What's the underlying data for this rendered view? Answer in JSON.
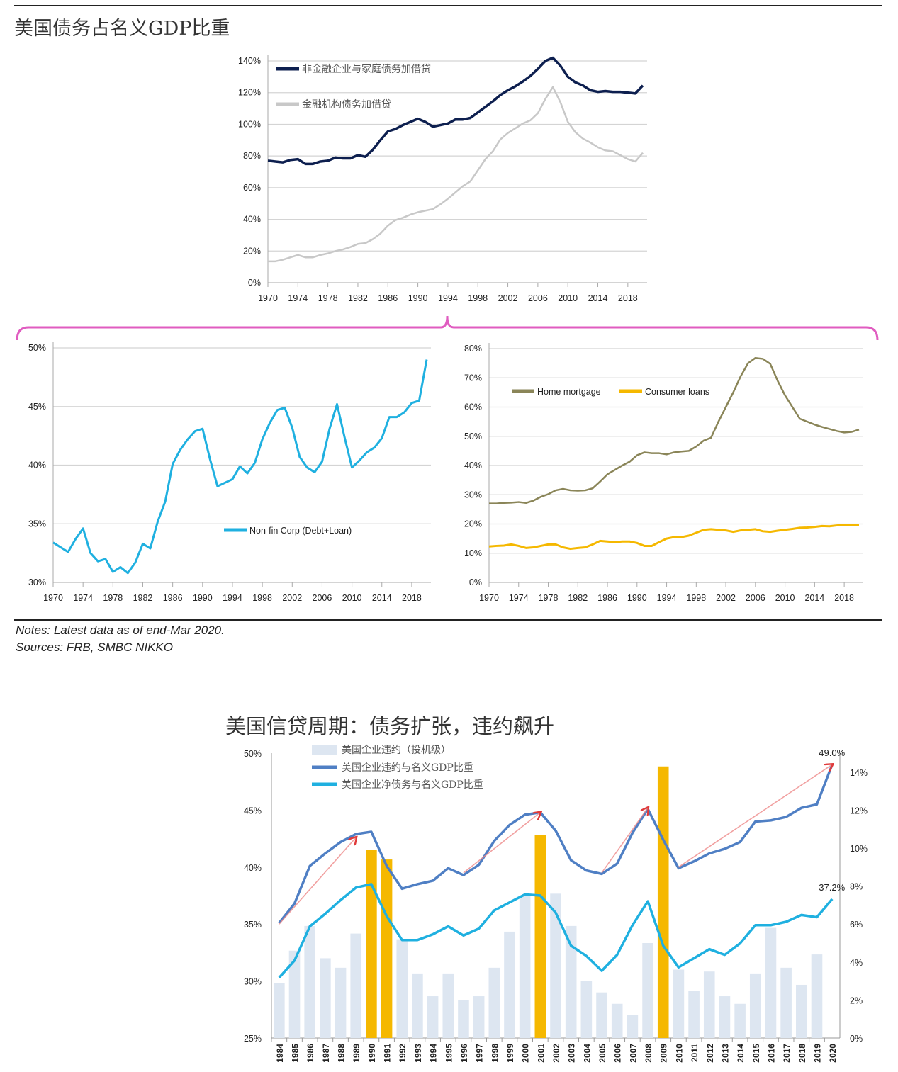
{
  "page": {
    "title_top": "美国债务占名义GDP比重",
    "title_bottom": "美国信贷周期：债务扩张，违约飙升",
    "notes": "Notes: Latest data as of end-Mar 2020.",
    "sources": "Sources: FRB, SMBC NIKKO"
  },
  "colors": {
    "bracket": "#e05cc0",
    "navy": "#0d1f4f",
    "lightgray": "#c8c8c8",
    "cyan": "#1fb0e0",
    "olive": "#8a8558",
    "gold": "#f5b800",
    "steel": "#4f7fc4",
    "paleblue": "#dde6f1",
    "arrow": "#e03a3a"
  },
  "chart_data": [
    {
      "type": "line",
      "title": "美国债务占名义GDP比重",
      "x_start": 1970,
      "x_end": 2020,
      "xticks": [
        "1970",
        "1974",
        "1978",
        "1982",
        "1986",
        "1990",
        "1994",
        "1998",
        "2002",
        "2006",
        "2010",
        "2014",
        "2018"
      ],
      "ylim": [
        0,
        140
      ],
      "yticks": [
        "0%",
        "20%",
        "40%",
        "60%",
        "80%",
        "100%",
        "120%",
        "140%"
      ],
      "grid": true,
      "legend": "top-left",
      "series": [
        {
          "name": "非金融企业与家庭债务加借贷",
          "color": "#0d1f4f",
          "values": [
            77,
            76.5,
            76,
            77.5,
            78,
            75,
            75,
            76.5,
            77,
            79,
            78.5,
            78.5,
            80.5,
            79.5,
            84,
            90,
            95.5,
            97,
            99.5,
            101.5,
            103.5,
            101.5,
            98.5,
            99.5,
            100.5,
            103,
            103,
            104,
            107.5,
            111,
            114.5,
            118.5,
            121.5,
            124,
            127,
            130.5,
            135,
            140,
            142,
            137,
            130,
            126.5,
            124.5,
            121.5,
            120.5,
            121,
            120.5,
            120.5,
            120,
            119.5,
            124.5
          ]
        },
        {
          "name": "金融机构债务加借贷",
          "color": "#c8c8c8",
          "values": [
            13.5,
            13.5,
            14.5,
            16,
            17.5,
            16,
            16,
            17.5,
            18.5,
            20,
            21,
            22.5,
            24.5,
            25,
            27.5,
            31,
            36,
            39.5,
            41,
            43,
            44.5,
            45.5,
            46.5,
            49.5,
            53,
            57,
            61,
            64,
            71,
            78,
            83,
            90.5,
            94.5,
            97.5,
            100.5,
            102.5,
            107,
            116,
            123.5,
            114,
            101.5,
            95,
            91,
            88.5,
            85.5,
            83.5,
            83,
            80.5,
            78,
            76.5,
            82
          ]
        }
      ]
    },
    {
      "type": "line",
      "x_start": 1970,
      "x_end": 2020,
      "xticks": [
        "1970",
        "1974",
        "1978",
        "1982",
        "1986",
        "1990",
        "1994",
        "1998",
        "2002",
        "2006",
        "2010",
        "2014",
        "2018"
      ],
      "ylim": [
        30,
        50
      ],
      "yticks": [
        "30%",
        "35%",
        "40%",
        "45%",
        "50%"
      ],
      "grid": true,
      "legend": "center-right",
      "series": [
        {
          "name": "Non-fin Corp (Debt+Loan)",
          "color": "#1fb0e0",
          "values": [
            33.4,
            33,
            32.6,
            33.7,
            34.6,
            32.5,
            31.8,
            32,
            30.9,
            31.3,
            30.8,
            31.7,
            33.3,
            32.9,
            35.2,
            36.9,
            40.1,
            41.3,
            42.2,
            42.9,
            43.1,
            40.5,
            38.2,
            38.5,
            38.8,
            39.9,
            39.3,
            40.2,
            42.2,
            43.6,
            44.7,
            44.9,
            43.2,
            40.7,
            39.8,
            39.4,
            40.3,
            43.1,
            45.2,
            42.4,
            39.8,
            40.4,
            41.1,
            41.5,
            42.3,
            44.1,
            44.1,
            44.5,
            45.3,
            45.5,
            49.0
          ]
        }
      ]
    },
    {
      "type": "line",
      "x_start": 1970,
      "x_end": 2020,
      "xticks": [
        "1970",
        "1974",
        "1978",
        "1982",
        "1986",
        "1990",
        "1994",
        "1998",
        "2002",
        "2006",
        "2010",
        "2014",
        "2018"
      ],
      "ylim": [
        0,
        80
      ],
      "yticks": [
        "0%",
        "10%",
        "20%",
        "30%",
        "40%",
        "50%",
        "60%",
        "70%",
        "80%"
      ],
      "grid": true,
      "legend": "top-left",
      "series": [
        {
          "name": "Home mortgage",
          "color": "#8a8558",
          "values": [
            27,
            27,
            27.2,
            27.3,
            27.5,
            27.2,
            28,
            29.3,
            30.2,
            31.5,
            32,
            31.5,
            31.4,
            31.5,
            32.2,
            34.5,
            37,
            38.5,
            40,
            41.3,
            43.5,
            44.5,
            44.2,
            44.2,
            43.8,
            44.5,
            44.8,
            45,
            46.5,
            48.5,
            49.5,
            55,
            60,
            65,
            70.5,
            75,
            76.8,
            76.5,
            74.8,
            69,
            64,
            60,
            56,
            55,
            54,
            53.2,
            52.5,
            51.8,
            51.3,
            51.5,
            52.3
          ]
        },
        {
          "name": "Consumer loans",
          "color": "#f5b800",
          "values": [
            12.3,
            12.5,
            12.6,
            13,
            12.5,
            11.8,
            12,
            12.5,
            13,
            13,
            12,
            11.5,
            11.8,
            12,
            13,
            14.2,
            14,
            13.8,
            14,
            14,
            13.5,
            12.5,
            12.5,
            13.8,
            15,
            15.5,
            15.5,
            16,
            17,
            18,
            18.2,
            18,
            17.8,
            17.3,
            17.8,
            18,
            18.2,
            17.5,
            17.3,
            17.7,
            18,
            18.3,
            18.7,
            18.8,
            19,
            19.3,
            19.2,
            19.5,
            19.7,
            19.6,
            19.7
          ]
        }
      ]
    },
    {
      "type": "bar+line",
      "title": "美国信贷周期：债务扩张，违约飙升",
      "categories": [
        "1984",
        "1985",
        "1986",
        "1987",
        "1988",
        "1989",
        "1990",
        "1991",
        "1992",
        "1993",
        "1994",
        "1995",
        "1996",
        "1997",
        "1998",
        "1999",
        "2000",
        "2001",
        "2002",
        "2003",
        "2004",
        "2005",
        "2006",
        "2007",
        "2008",
        "2009",
        "2010",
        "2011",
        "2012",
        "2013",
        "2014",
        "2015",
        "2016",
        "2017",
        "2018",
        "2019",
        "2020"
      ],
      "ylim_left": [
        25,
        50
      ],
      "yticks_left": [
        "25%",
        "30%",
        "35%",
        "40%",
        "45%",
        "50%"
      ],
      "ylim_right": [
        0,
        15
      ],
      "yticks_right": [
        "0%",
        "2%",
        "4%",
        "6%",
        "8%",
        "10%",
        "12%",
        "14%"
      ],
      "legend": "top-left",
      "bars": {
        "name": "美国企业违约（投机级）",
        "axis": "right",
        "color": "#dde6f1",
        "highlight_color": "#f5b800",
        "highlight": [
          "1990",
          "1991",
          "2001",
          "2009"
        ],
        "values": [
          2.9,
          4.6,
          5.9,
          4.2,
          3.7,
          5.5,
          9.9,
          9.4,
          5.2,
          3.4,
          2.2,
          3.4,
          2.0,
          2.2,
          3.7,
          5.6,
          7.5,
          10.7,
          7.6,
          5.9,
          3.0,
          2.4,
          1.8,
          1.2,
          5.0,
          14.3,
          3.6,
          2.5,
          3.5,
          2.2,
          1.8,
          3.4,
          5.8,
          3.7,
          2.8,
          4.4,
          null
        ]
      },
      "series": [
        {
          "name": "美国企业违约与名义GDP比重",
          "axis": "left",
          "color": "#4f7fc4",
          "values": [
            35.1,
            36.8,
            40.1,
            41.2,
            42.2,
            42.9,
            43.1,
            40.1,
            38.1,
            38.5,
            38.8,
            39.9,
            39.3,
            40.2,
            42.3,
            43.7,
            44.6,
            44.8,
            43.2,
            40.6,
            39.7,
            39.4,
            40.3,
            43.0,
            45.1,
            42.4,
            39.9,
            40.5,
            41.2,
            41.6,
            42.2,
            44.0,
            44.1,
            44.4,
            45.2,
            45.5,
            49.0
          ]
        },
        {
          "name": "美国企业净债务与名义GDP比重",
          "axis": "left",
          "color": "#1fb0e0",
          "values": [
            30.3,
            31.8,
            34.8,
            35.9,
            37.1,
            38.2,
            38.5,
            35.7,
            33.6,
            33.6,
            34.1,
            34.8,
            34.0,
            34.6,
            36.2,
            36.9,
            37.6,
            37.5,
            36.0,
            33.1,
            32.2,
            30.9,
            32.3,
            34.9,
            37.0,
            33.1,
            31.2,
            32.0,
            32.8,
            32.3,
            33.3,
            34.9,
            34.9,
            35.2,
            35.8,
            35.6,
            37.2
          ]
        }
      ],
      "annotations": [
        {
          "label": "49.0%",
          "x": "2020",
          "y": 49.0
        },
        {
          "label": "37.2%",
          "x": "2020",
          "y": 37.2
        }
      ],
      "trend_arrows": [
        {
          "from": [
            "1984",
            35.0
          ],
          "to": [
            "1989",
            42.6
          ]
        },
        {
          "from": [
            "1996",
            39.5
          ],
          "to": [
            "2001",
            44.8
          ]
        },
        {
          "from": [
            "2005",
            39.5
          ],
          "to": [
            "2008",
            45.2
          ]
        },
        {
          "from": [
            "2010",
            40.0
          ],
          "to": [
            "2020",
            49.0
          ]
        }
      ]
    }
  ]
}
